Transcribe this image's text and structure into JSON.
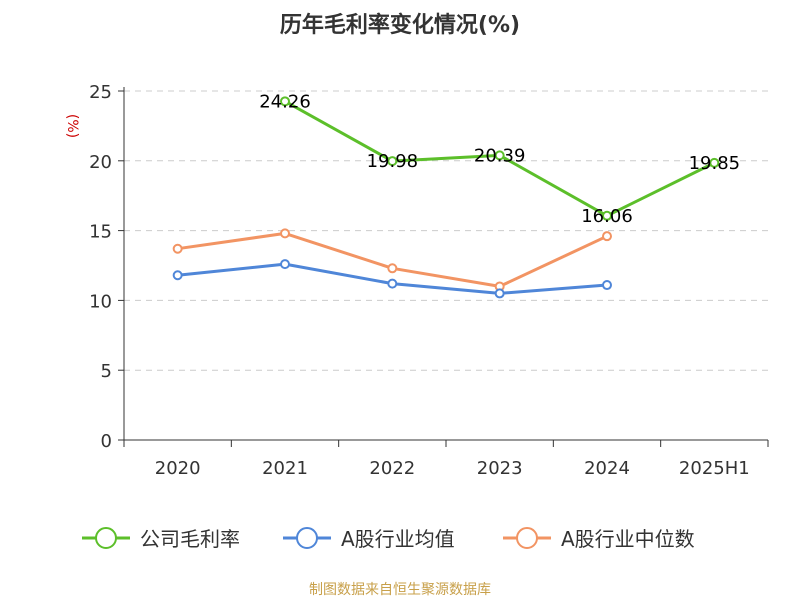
{
  "chart_data": {
    "type": "line",
    "title": "历年毛利率变化情况(%)",
    "ylabel": "(%)",
    "xlabel": "",
    "categories": [
      "2020",
      "2021",
      "2022",
      "2023",
      "2024",
      "2025H1"
    ],
    "ylim": [
      0,
      25
    ],
    "yticks": [
      0,
      5,
      10,
      15,
      20,
      25
    ],
    "grid": true,
    "legend_position": "bottom",
    "series": [
      {
        "name": "公司毛利率",
        "color": "#5cbf2a",
        "values": [
          null,
          24.26,
          19.98,
          20.39,
          16.06,
          19.85
        ],
        "labels": [
          "",
          "24.26",
          "19.98",
          "20.39",
          "16.06",
          "19.85"
        ]
      },
      {
        "name": "A股行业均值",
        "color": "#4f86d8",
        "values": [
          11.8,
          12.6,
          11.2,
          10.5,
          11.1,
          null
        ]
      },
      {
        "name": "A股行业中位数",
        "color": "#f29463",
        "values": [
          13.7,
          14.8,
          12.3,
          11.0,
          14.6,
          null
        ]
      }
    ],
    "source": "制图数据来自恒生聚源数据库"
  }
}
